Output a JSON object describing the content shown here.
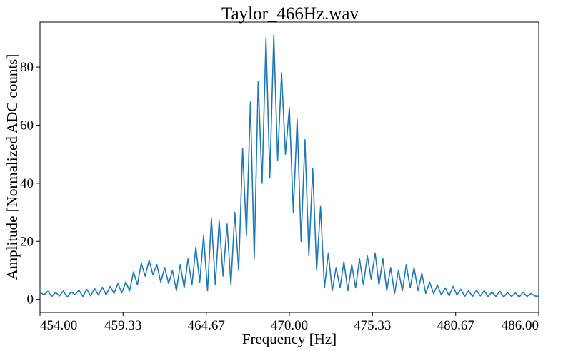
{
  "chart_data": {
    "type": "line",
    "title": "Taylor_466Hz.wav",
    "xlabel": "Frequency [Hz]",
    "ylabel": "Amplitude [Normalized ADC counts]",
    "xlim": [
      454.0,
      486.0
    ],
    "ylim": [
      -4.5,
      95.5
    ],
    "grid": false,
    "xticks": [
      454.0,
      459.33,
      464.67,
      470.0,
      475.33,
      480.67,
      486.0
    ],
    "xtick_labels": [
      "454.00",
      "459.33",
      "464.67",
      "470.00",
      "475.33",
      "480.67",
      "486.00"
    ],
    "yticks": [
      0,
      20,
      40,
      60,
      80
    ],
    "ytick_labels": [
      "0",
      "20",
      "40",
      "60",
      "80"
    ],
    "series": [
      {
        "color": "#1f77b4",
        "x": [
          454.0,
          454.25,
          454.5,
          454.75,
          455.0,
          455.25,
          455.5,
          455.75,
          456.0,
          456.25,
          456.5,
          456.75,
          457.0,
          457.25,
          457.5,
          457.75,
          458.0,
          458.25,
          458.5,
          458.75,
          459.0,
          459.25,
          459.5,
          459.75,
          460.0,
          460.25,
          460.5,
          460.75,
          461.0,
          461.25,
          461.5,
          461.75,
          462.0,
          462.25,
          462.5,
          462.75,
          463.0,
          463.25,
          463.5,
          463.75,
          464.0,
          464.25,
          464.5,
          464.75,
          465.0,
          465.25,
          465.5,
          465.75,
          466.0,
          466.25,
          466.5,
          466.75,
          467.0,
          467.25,
          467.5,
          467.75,
          468.0,
          468.25,
          468.5,
          468.75,
          469.0,
          469.25,
          469.5,
          469.75,
          470.0,
          470.25,
          470.5,
          470.75,
          471.0,
          471.25,
          471.5,
          471.75,
          472.0,
          472.25,
          472.5,
          472.75,
          473.0,
          473.25,
          473.5,
          473.75,
          474.0,
          474.25,
          474.5,
          474.75,
          475.0,
          475.25,
          475.5,
          475.75,
          476.0,
          476.25,
          476.5,
          476.75,
          477.0,
          477.25,
          477.5,
          477.75,
          478.0,
          478.25,
          478.5,
          478.75,
          479.0,
          479.25,
          479.5,
          479.75,
          480.0,
          480.25,
          480.5,
          480.75,
          481.0,
          481.25,
          481.5,
          481.75,
          482.0,
          482.25,
          482.5,
          482.75,
          483.0,
          483.25,
          483.5,
          483.75,
          484.0,
          484.25,
          484.5,
          484.75,
          485.0,
          485.25,
          485.5,
          485.75,
          486.0
        ],
        "y": [
          2.5,
          1.5,
          2.8,
          1.0,
          2.4,
          1.2,
          2.9,
          0.8,
          2.6,
          1.6,
          3.2,
          1.0,
          3.5,
          1.2,
          3.8,
          1.5,
          4.2,
          1.6,
          4.5,
          2.0,
          5.5,
          2.2,
          6.0,
          3.0,
          9.5,
          5.0,
          12.5,
          8.0,
          13.5,
          8.5,
          12.0,
          6.0,
          11.0,
          5.5,
          10.0,
          3.0,
          12.0,
          4.0,
          14.0,
          5.0,
          18.0,
          6.0,
          22.0,
          3.0,
          28.0,
          5.0,
          27.0,
          8.0,
          26.0,
          5.0,
          30.0,
          10.0,
          52.0,
          22.0,
          68.0,
          14.0,
          75.0,
          40.0,
          90.0,
          42.0,
          91.0,
          48.0,
          78.0,
          50.0,
          66.0,
          30.0,
          62.0,
          20.0,
          55.0,
          15.0,
          45.0,
          10.0,
          32.0,
          4.0,
          16.0,
          3.0,
          11.0,
          4.0,
          13.0,
          3.0,
          12.0,
          4.0,
          14.0,
          5.0,
          15.0,
          7.0,
          16.0,
          5.0,
          14.0,
          3.0,
          11.0,
          2.0,
          10.0,
          3.0,
          12.0,
          4.0,
          11.0,
          3.0,
          9.0,
          2.0,
          6.0,
          2.0,
          5.0,
          1.5,
          4.0,
          1.2,
          4.5,
          1.5,
          3.5,
          1.0,
          3.0,
          1.0,
          3.2,
          1.2,
          3.0,
          1.0,
          2.5,
          1.0,
          2.8,
          0.8,
          2.4,
          1.0,
          2.2,
          0.8,
          2.5,
          1.0,
          2.0,
          1.2,
          1.0
        ]
      }
    ]
  }
}
